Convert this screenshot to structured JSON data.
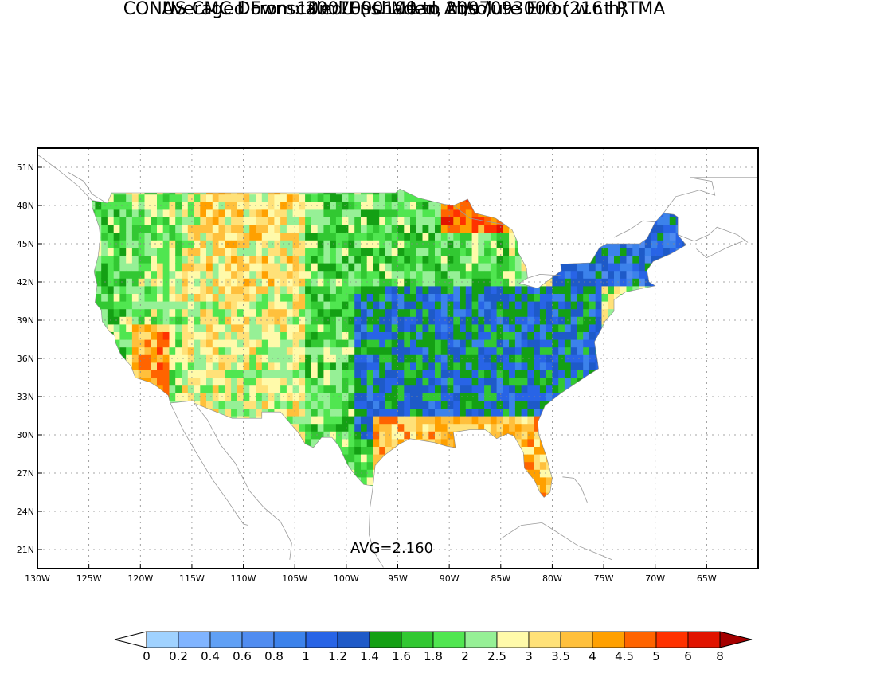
{
  "title": {
    "line1": "CONUS CMC Downscaled Ens. Mean Absolute Error w.r.t RTMA",
    "line2": "10m U ( shaded, m/s )",
    "line3": "Averaged From: 2007090100 to 2007093000 (216 h)"
  },
  "map": {
    "lon_range": [
      -130,
      -60
    ],
    "lat_range": [
      19.5,
      52.5
    ],
    "lon_ticks": [
      {
        "lon": -130,
        "label": "130W"
      },
      {
        "lon": -125,
        "label": "125W"
      },
      {
        "lon": -120,
        "label": "120W"
      },
      {
        "lon": -115,
        "label": "115W"
      },
      {
        "lon": -110,
        "label": "110W"
      },
      {
        "lon": -105,
        "label": "105W"
      },
      {
        "lon": -100,
        "label": "100W"
      },
      {
        "lon": -95,
        "label": "95W"
      },
      {
        "lon": -90,
        "label": "90W"
      },
      {
        "lon": -85,
        "label": "85W"
      },
      {
        "lon": -80,
        "label": "80W"
      },
      {
        "lon": -75,
        "label": "75W"
      },
      {
        "lon": -70,
        "label": "70W"
      },
      {
        "lon": -65,
        "label": "65W"
      }
    ],
    "lat_ticks": [
      {
        "lat": 21,
        "label": "21N"
      },
      {
        "lat": 24,
        "label": "24N"
      },
      {
        "lat": 27,
        "label": "27N"
      },
      {
        "lat": 30,
        "label": "30N"
      },
      {
        "lat": 33,
        "label": "33N"
      },
      {
        "lat": 36,
        "label": "36N"
      },
      {
        "lat": 39,
        "label": "39N"
      },
      {
        "lat": 42,
        "label": "42N"
      },
      {
        "lat": 45,
        "label": "45N"
      },
      {
        "lat": 48,
        "label": "48N"
      },
      {
        "lat": 51,
        "label": "51N"
      }
    ],
    "grid": "dotted",
    "avg_label": "AVG=2.160"
  },
  "colorbar": {
    "bins": [
      {
        "color": "#a0d2ff"
      },
      {
        "color": "#80b4ff"
      },
      {
        "color": "#60a0f5"
      },
      {
        "color": "#508cf0"
      },
      {
        "color": "#3c82eb"
      },
      {
        "color": "#2864e6"
      },
      {
        "color": "#1e5ac8"
      },
      {
        "color": "#14a014"
      },
      {
        "color": "#32c832"
      },
      {
        "color": "#50e650"
      },
      {
        "color": "#96f096"
      },
      {
        "color": "#fffaaa"
      },
      {
        "color": "#ffe178"
      },
      {
        "color": "#ffc03c"
      },
      {
        "color": "#ffa000"
      },
      {
        "color": "#ff6400"
      },
      {
        "color": "#ff3200"
      },
      {
        "color": "#e11400"
      }
    ],
    "under_color": "#ffffff",
    "over_color": "#a50000",
    "labels": [
      "0",
      "0.2",
      "0.4",
      "0.6",
      "0.8",
      "1",
      "1.2",
      "1.4",
      "1.6",
      "1.8",
      "2",
      "2.5",
      "3",
      "3.5",
      "4",
      "4.5",
      "5",
      "6",
      "8"
    ]
  }
}
